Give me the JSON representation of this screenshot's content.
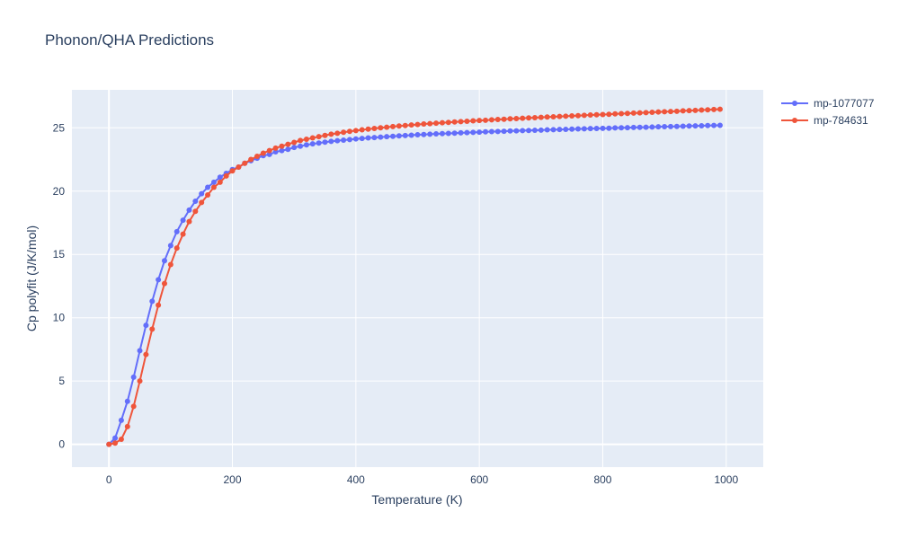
{
  "chart_data": {
    "type": "line",
    "title": "Phonon/QHA Predictions",
    "xlabel": "Temperature (K)",
    "ylabel": "Cp polyfit (J/K/mol)",
    "xlim": [
      -60,
      1060
    ],
    "ylim": [
      -1.8,
      28.0
    ],
    "xticks": [
      0,
      200,
      400,
      600,
      800,
      1000
    ],
    "xtick_labels": [
      "0",
      "200",
      "400",
      "600",
      "800",
      "1000"
    ],
    "yticks": [
      0,
      5,
      10,
      15,
      20,
      25
    ],
    "ytick_labels": [
      "0",
      "5",
      "10",
      "15",
      "20",
      "25"
    ],
    "grid": true,
    "legend_position": "top-right, outside plot",
    "x": [
      0,
      10,
      20,
      30,
      40,
      50,
      60,
      70,
      80,
      90,
      100,
      110,
      120,
      130,
      140,
      150,
      160,
      170,
      180,
      190,
      200,
      210,
      220,
      230,
      240,
      250,
      260,
      270,
      280,
      290,
      300,
      310,
      320,
      330,
      340,
      350,
      360,
      370,
      380,
      390,
      400,
      410,
      420,
      430,
      440,
      450,
      460,
      470,
      480,
      490,
      500,
      510,
      520,
      530,
      540,
      550,
      560,
      570,
      580,
      590,
      600,
      610,
      620,
      630,
      640,
      650,
      660,
      670,
      680,
      690,
      700,
      710,
      720,
      730,
      740,
      750,
      760,
      770,
      780,
      790,
      800,
      810,
      820,
      830,
      840,
      850,
      860,
      870,
      880,
      890,
      900,
      910,
      920,
      930,
      940,
      950,
      960,
      970,
      980,
      990
    ],
    "series": [
      {
        "name": "mp-1077077",
        "color": "#636efa",
        "values": [
          0,
          0.5,
          1.9,
          3.4,
          5.3,
          7.4,
          9.4,
          11.3,
          13.0,
          14.5,
          15.7,
          16.8,
          17.7,
          18.5,
          19.2,
          19.8,
          20.3,
          20.7,
          21.1,
          21.4,
          21.7,
          21.9,
          22.2,
          22.4,
          22.6,
          22.8,
          22.9,
          23.1,
          23.2,
          23.3,
          23.45,
          23.55,
          23.65,
          23.73,
          23.8,
          23.87,
          23.93,
          23.98,
          24.03,
          24.07,
          24.12,
          24.16,
          24.2,
          24.23,
          24.27,
          24.3,
          24.33,
          24.36,
          24.39,
          24.42,
          24.45,
          24.47,
          24.5,
          24.52,
          24.54,
          24.56,
          24.58,
          24.6,
          24.62,
          24.64,
          24.66,
          24.68,
          24.7,
          24.71,
          24.73,
          24.75,
          24.76,
          24.78,
          24.79,
          24.81,
          24.82,
          24.84,
          24.85,
          24.87,
          24.88,
          24.9,
          24.91,
          24.92,
          24.94,
          24.95,
          24.96,
          24.97,
          24.99,
          25.0,
          25.01,
          25.03,
          25.04,
          25.05,
          25.06,
          25.08,
          25.09,
          25.1,
          25.11,
          25.13,
          25.14,
          25.15,
          25.16,
          25.18,
          25.19,
          25.2
        ]
      },
      {
        "name": "mp-784631",
        "color": "#ef553b",
        "values": [
          0,
          0.1,
          0.4,
          1.4,
          3.0,
          5.0,
          7.1,
          9.1,
          11.0,
          12.7,
          14.2,
          15.5,
          16.6,
          17.6,
          18.4,
          19.1,
          19.7,
          20.3,
          20.7,
          21.2,
          21.6,
          21.9,
          22.2,
          22.5,
          22.75,
          23.0,
          23.2,
          23.4,
          23.55,
          23.7,
          23.85,
          24.0,
          24.1,
          24.2,
          24.3,
          24.4,
          24.5,
          24.57,
          24.65,
          24.72,
          24.78,
          24.84,
          24.9,
          24.95,
          25.0,
          25.05,
          25.1,
          25.14,
          25.18,
          25.22,
          25.26,
          25.3,
          25.33,
          25.37,
          25.4,
          25.43,
          25.46,
          25.49,
          25.52,
          25.55,
          25.58,
          25.6,
          25.63,
          25.66,
          25.68,
          25.71,
          25.73,
          25.76,
          25.78,
          25.8,
          25.83,
          25.85,
          25.87,
          25.9,
          25.92,
          25.94,
          25.96,
          25.99,
          26.01,
          26.03,
          26.05,
          26.07,
          26.1,
          26.12,
          26.14,
          26.16,
          26.18,
          26.2,
          26.23,
          26.25,
          26.27,
          26.29,
          26.31,
          26.34,
          26.36,
          26.38,
          26.4,
          26.42,
          26.45,
          26.47
        ]
      }
    ]
  }
}
